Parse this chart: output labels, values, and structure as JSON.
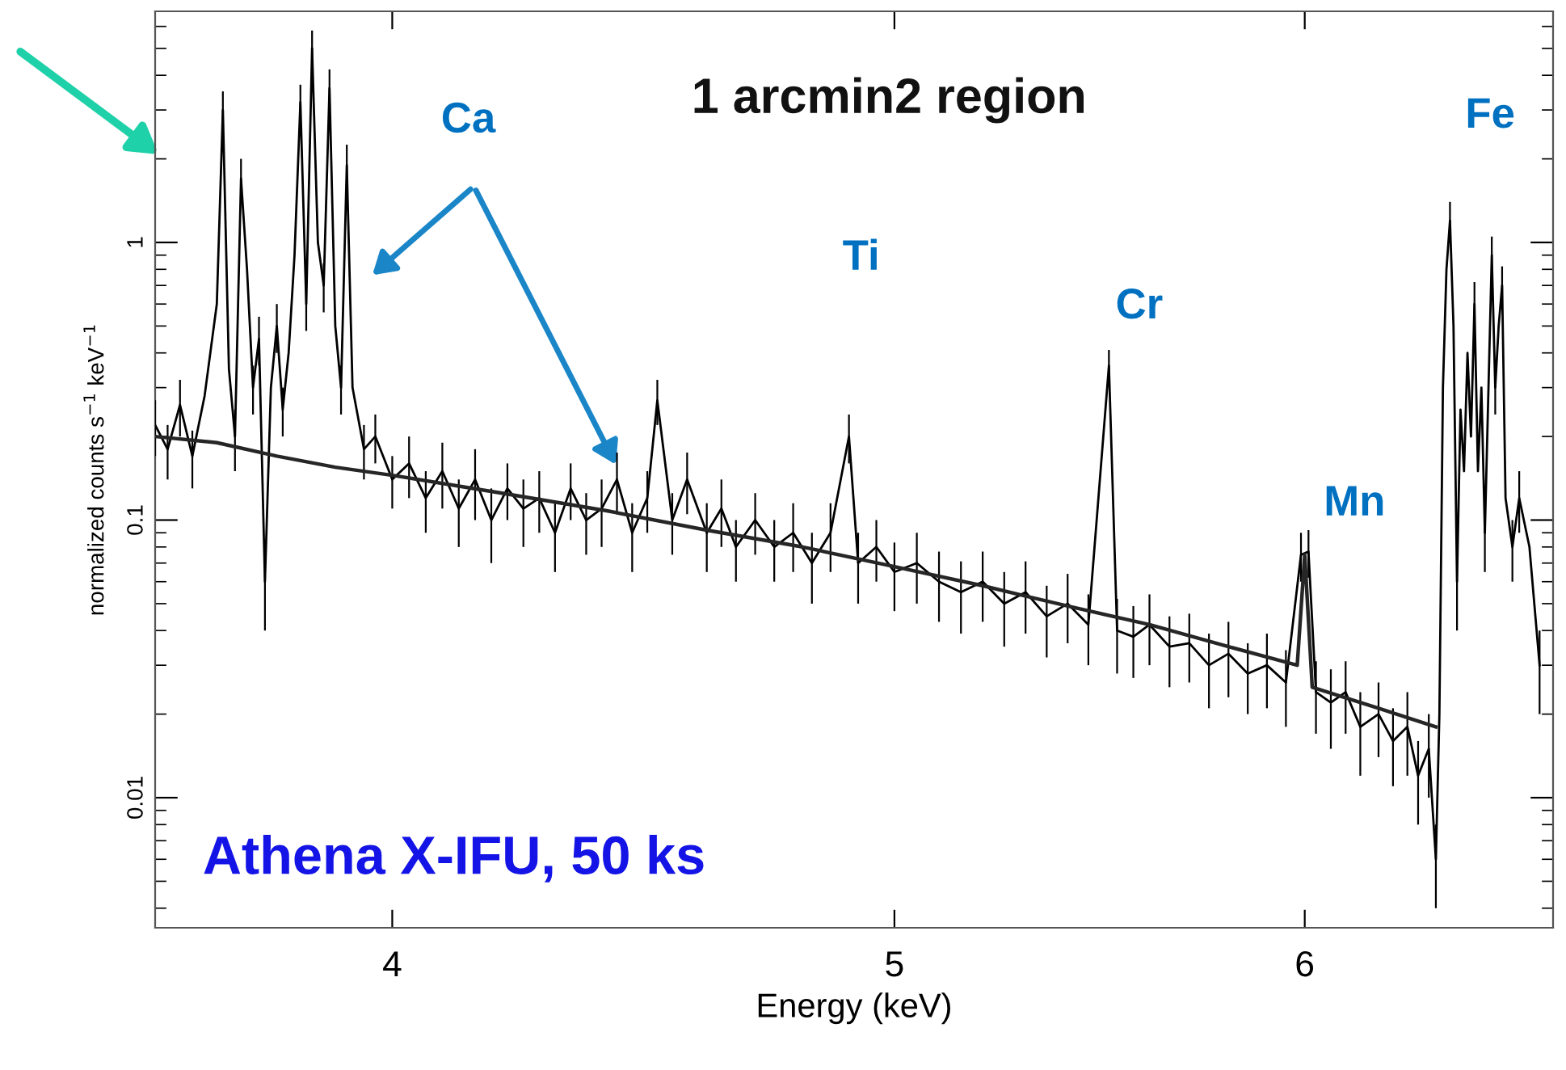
{
  "chart_data": {
    "type": "line",
    "xlabel": "Energy (keV)",
    "ylabel": "normalized counts s$^{−1}$ keV$^{−1}$",
    "log": "xy",
    "xlim": [
      3.6,
      6.7
    ],
    "xticks": [
      4,
      5,
      6
    ],
    "ylim": [
      0.0034,
      6.8
    ],
    "yticks": [
      {
        "value": 0.01,
        "label": "0.01"
      },
      {
        "value": 0.1,
        "label": "0.1"
      },
      {
        "value": 1,
        "label": "1"
      }
    ],
    "annotations": [
      "1 arcmin2 region",
      "Ca",
      "Ti",
      "Cr",
      "Mn",
      "Fe",
      "Athena X-IFU, 50 ks"
    ],
    "series": [
      {
        "color": "#000000",
        "x": [
          3.6,
          3.62,
          3.64,
          3.66,
          3.68,
          3.7,
          3.71,
          3.72,
          3.73,
          3.74,
          3.75,
          3.76,
          3.77,
          3.78,
          3.79,
          3.8,
          3.81,
          3.82,
          3.83,
          3.84,
          3.85,
          3.86,
          3.87,
          3.88,
          3.89,
          3.9,
          3.91,
          3.92,
          3.93,
          3.95,
          3.97,
          4.0,
          4.03,
          4.06,
          4.09,
          4.12,
          4.15,
          4.18,
          4.21,
          4.24,
          4.27,
          4.3,
          4.33,
          4.36,
          4.39,
          4.42,
          4.45,
          4.48,
          4.5,
          4.53,
          4.56,
          4.6,
          4.63,
          4.66,
          4.7,
          4.74,
          4.78,
          4.82,
          4.86,
          4.9,
          4.92,
          4.96,
          5.0,
          5.05,
          5.1,
          5.15,
          5.2,
          5.25,
          5.3,
          5.35,
          5.4,
          5.45,
          5.5,
          5.52,
          5.56,
          5.6,
          5.65,
          5.7,
          5.75,
          5.8,
          5.85,
          5.9,
          5.95,
          5.99,
          6.01,
          6.03,
          6.07,
          6.11,
          6.15,
          6.2,
          6.24,
          6.28,
          6.31,
          6.34,
          6.36,
          6.37,
          6.38,
          6.39,
          6.4,
          6.41,
          6.42,
          6.43,
          6.44,
          6.45,
          6.46,
          6.47,
          6.48,
          6.49,
          6.5,
          6.52,
          6.53,
          6.54,
          6.55,
          6.56,
          6.58,
          6.6,
          6.63,
          6.66
        ],
        "values": [
          0.22,
          0.18,
          0.26,
          0.17,
          0.28,
          0.6,
          3.0,
          0.35,
          0.2,
          1.7,
          0.8,
          0.3,
          0.45,
          0.06,
          0.3,
          0.5,
          0.25,
          0.4,
          0.9,
          3.2,
          0.6,
          5.0,
          1.0,
          0.7,
          3.6,
          0.5,
          0.3,
          1.9,
          0.3,
          0.18,
          0.2,
          0.14,
          0.16,
          0.12,
          0.15,
          0.11,
          0.14,
          0.1,
          0.13,
          0.11,
          0.12,
          0.09,
          0.13,
          0.1,
          0.11,
          0.14,
          0.09,
          0.12,
          0.27,
          0.1,
          0.14,
          0.09,
          0.11,
          0.08,
          0.1,
          0.08,
          0.09,
          0.07,
          0.09,
          0.2,
          0.07,
          0.08,
          0.065,
          0.07,
          0.06,
          0.055,
          0.06,
          0.05,
          0.055,
          0.045,
          0.05,
          0.042,
          0.36,
          0.04,
          0.038,
          0.042,
          0.035,
          0.036,
          0.03,
          0.033,
          0.028,
          0.03,
          0.026,
          0.075,
          0.077,
          0.024,
          0.022,
          0.024,
          0.018,
          0.02,
          0.016,
          0.018,
          0.012,
          0.015,
          0.006,
          0.02,
          0.3,
          0.8,
          1.2,
          0.5,
          0.06,
          0.25,
          0.15,
          0.4,
          0.2,
          0.6,
          0.15,
          0.3,
          0.09,
          0.9,
          0.3,
          0.5,
          0.7,
          0.12,
          0.08,
          0.12,
          0.08,
          0.03
        ],
        "errors": [
          0.05,
          0.04,
          0.06,
          0.04,
          null,
          null,
          0.5,
          null,
          0.05,
          0.3,
          null,
          0.06,
          0.09,
          0.02,
          null,
          0.1,
          0.05,
          null,
          null,
          0.5,
          0.12,
          0.8,
          null,
          0.14,
          0.6,
          null,
          0.06,
          0.35,
          null,
          0.04,
          0.04,
          0.03,
          0.04,
          0.03,
          0.04,
          0.03,
          0.04,
          0.03,
          0.03,
          0.03,
          0.03,
          0.025,
          0.03,
          0.025,
          0.03,
          0.035,
          0.025,
          0.03,
          0.05,
          0.025,
          0.035,
          0.025,
          0.03,
          0.02,
          0.025,
          0.02,
          0.025,
          0.02,
          0.025,
          0.04,
          0.02,
          0.02,
          0.018,
          0.02,
          0.017,
          0.016,
          0.017,
          0.015,
          0.016,
          0.013,
          0.014,
          0.012,
          0.05,
          0.012,
          0.011,
          0.012,
          0.01,
          0.01,
          0.009,
          0.01,
          0.008,
          0.009,
          0.008,
          0.015,
          0.015,
          0.007,
          0.007,
          0.007,
          0.006,
          0.006,
          0.005,
          0.006,
          0.004,
          0.005,
          0.002,
          null,
          null,
          null,
          0.2,
          null,
          0.02,
          null,
          null,
          null,
          null,
          0.12,
          null,
          null,
          0.025,
          0.15,
          0.06,
          null,
          0.12,
          null,
          0.02,
          0.03,
          null,
          0.01
        ]
      },
      {
        "color": "#262626",
        "x": [
          3.6,
          3.7,
          3.8,
          3.9,
          4.0,
          4.2,
          4.4,
          4.6,
          4.8,
          5.0,
          5.2,
          5.4,
          5.6,
          5.8,
          5.98,
          6.0,
          6.02,
          6.2,
          6.36
        ],
        "values": [
          0.2,
          0.19,
          0.17,
          0.155,
          0.145,
          0.125,
          0.108,
          0.092,
          0.08,
          0.068,
          0.058,
          0.049,
          0.042,
          0.035,
          0.03,
          0.075,
          0.025,
          0.021,
          0.018
        ]
      }
    ]
  }
}
